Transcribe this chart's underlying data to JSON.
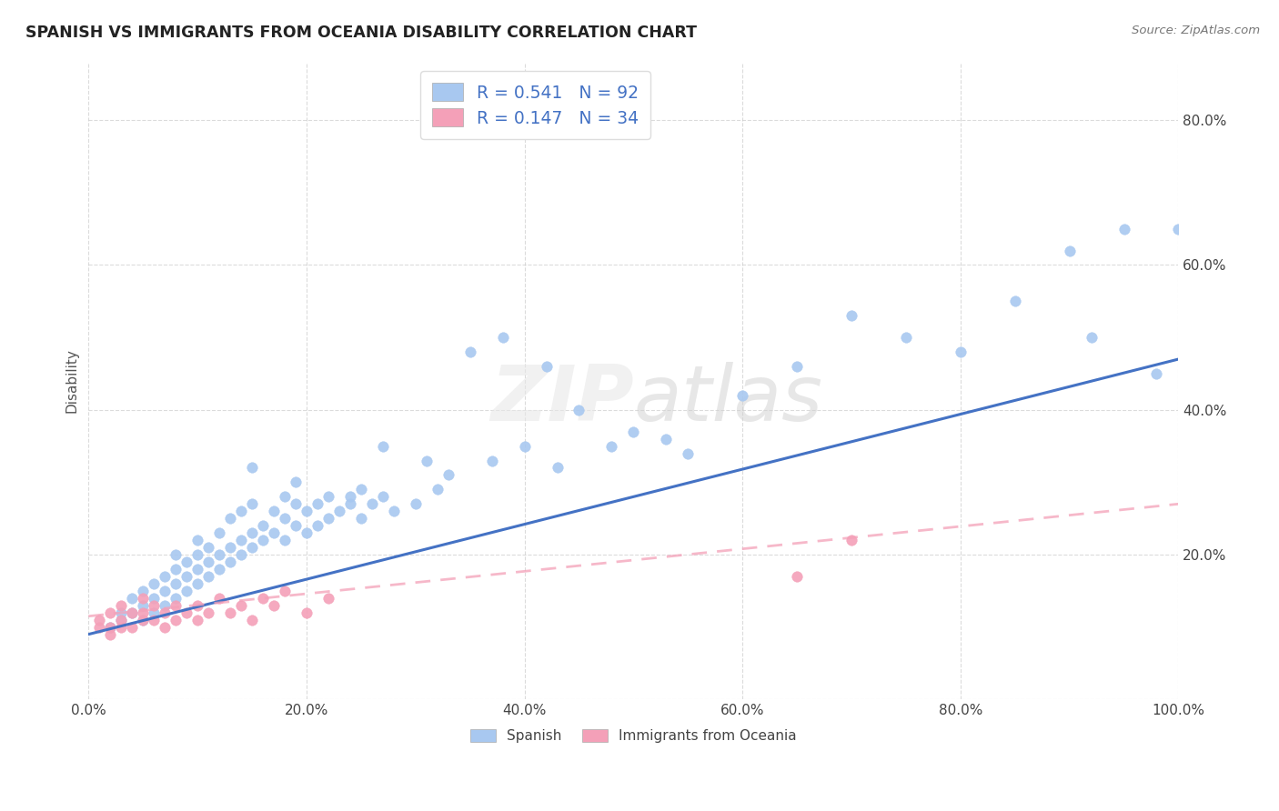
{
  "title": "SPANISH VS IMMIGRANTS FROM OCEANIA DISABILITY CORRELATION CHART",
  "source": "Source: ZipAtlas.com",
  "ylabel": "Disability",
  "legend_label1": "Spanish",
  "legend_label2": "Immigrants from Oceania",
  "r1": 0.541,
  "n1": 92,
  "r2": 0.147,
  "n2": 34,
  "color_blue": "#A8C8F0",
  "color_pink": "#F4A0B8",
  "color_blue_line": "#4472C4",
  "color_pink_line": "#F4A0B8",
  "background": "#FFFFFF",
  "grid_color": "#CCCCCC",
  "watermark_text": "ZIPatlas",
  "xlim": [
    0.0,
    1.0
  ],
  "ylim": [
    0.0,
    0.88
  ],
  "xticks": [
    0.0,
    0.2,
    0.4,
    0.6,
    0.8,
    1.0
  ],
  "yticks": [
    0.0,
    0.2,
    0.4,
    0.6,
    0.8
  ],
  "spanish_x": [
    0.02,
    0.03,
    0.03,
    0.04,
    0.04,
    0.05,
    0.05,
    0.05,
    0.06,
    0.06,
    0.06,
    0.07,
    0.07,
    0.07,
    0.08,
    0.08,
    0.08,
    0.08,
    0.09,
    0.09,
    0.09,
    0.1,
    0.1,
    0.1,
    0.1,
    0.11,
    0.11,
    0.11,
    0.12,
    0.12,
    0.12,
    0.13,
    0.13,
    0.13,
    0.14,
    0.14,
    0.14,
    0.15,
    0.15,
    0.15,
    0.16,
    0.16,
    0.17,
    0.17,
    0.18,
    0.18,
    0.18,
    0.19,
    0.19,
    0.2,
    0.2,
    0.21,
    0.21,
    0.22,
    0.22,
    0.23,
    0.24,
    0.25,
    0.25,
    0.26,
    0.27,
    0.28,
    0.3,
    0.32,
    0.33,
    0.35,
    0.37,
    0.4,
    0.43,
    0.45,
    0.48,
    0.5,
    0.53,
    0.55,
    0.6,
    0.65,
    0.7,
    0.75,
    0.8,
    0.85,
    0.9,
    0.92,
    0.95,
    0.98,
    1.0,
    0.38,
    0.42,
    0.27,
    0.15,
    0.19,
    0.24,
    0.31
  ],
  "spanish_y": [
    0.1,
    0.11,
    0.12,
    0.12,
    0.14,
    0.11,
    0.13,
    0.15,
    0.12,
    0.14,
    0.16,
    0.13,
    0.15,
    0.17,
    0.14,
    0.16,
    0.18,
    0.2,
    0.15,
    0.17,
    0.19,
    0.16,
    0.18,
    0.2,
    0.22,
    0.17,
    0.19,
    0.21,
    0.18,
    0.2,
    0.23,
    0.19,
    0.21,
    0.25,
    0.2,
    0.22,
    0.26,
    0.21,
    0.23,
    0.27,
    0.22,
    0.24,
    0.23,
    0.26,
    0.22,
    0.25,
    0.28,
    0.24,
    0.27,
    0.23,
    0.26,
    0.24,
    0.27,
    0.25,
    0.28,
    0.26,
    0.27,
    0.25,
    0.29,
    0.27,
    0.28,
    0.26,
    0.27,
    0.29,
    0.31,
    0.48,
    0.33,
    0.35,
    0.32,
    0.4,
    0.35,
    0.37,
    0.36,
    0.34,
    0.42,
    0.46,
    0.53,
    0.5,
    0.48,
    0.55,
    0.62,
    0.5,
    0.65,
    0.45,
    0.65,
    0.5,
    0.46,
    0.35,
    0.32,
    0.3,
    0.28,
    0.33
  ],
  "oceania_x": [
    0.01,
    0.01,
    0.02,
    0.02,
    0.02,
    0.03,
    0.03,
    0.03,
    0.04,
    0.04,
    0.05,
    0.05,
    0.05,
    0.06,
    0.06,
    0.07,
    0.07,
    0.08,
    0.08,
    0.09,
    0.1,
    0.1,
    0.11,
    0.12,
    0.13,
    0.14,
    0.15,
    0.16,
    0.17,
    0.18,
    0.2,
    0.22,
    0.65,
    0.7
  ],
  "oceania_y": [
    0.1,
    0.11,
    0.09,
    0.1,
    0.12,
    0.1,
    0.11,
    0.13,
    0.1,
    0.12,
    0.11,
    0.12,
    0.14,
    0.11,
    0.13,
    0.1,
    0.12,
    0.11,
    0.13,
    0.12,
    0.11,
    0.13,
    0.12,
    0.14,
    0.12,
    0.13,
    0.11,
    0.14,
    0.13,
    0.15,
    0.12,
    0.14,
    0.17,
    0.22
  ],
  "blue_line_x": [
    0.0,
    1.0
  ],
  "blue_line_y": [
    0.09,
    0.47
  ],
  "pink_line_x": [
    0.0,
    1.0
  ],
  "pink_line_y": [
    0.115,
    0.27
  ]
}
